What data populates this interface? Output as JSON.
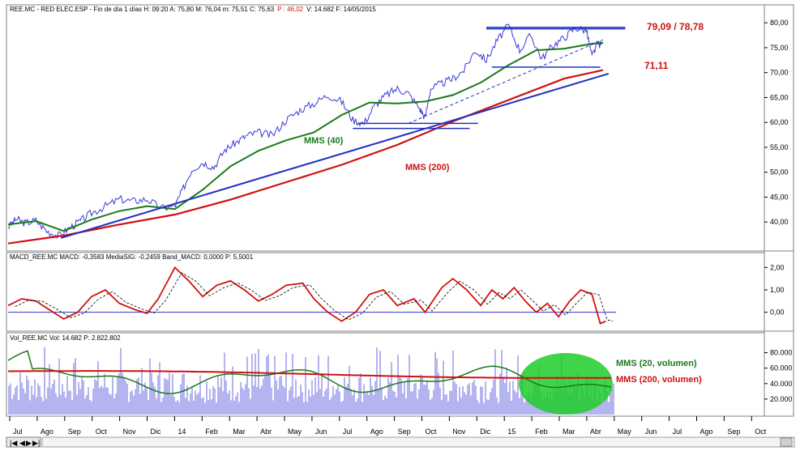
{
  "header": {
    "price": "REE.MC - RED ELEC.ESP - Fin de día 1 días  H: 09:20  A: 75,80  M: 76,04  m: 75,51  C: 75,63",
    "price_p": "P : 46,02",
    "price_tail": "V: 14.682  F: 14/05/2015",
    "macd": "MACD_REE.MC  MACD: -0,3583  MediaSIG: -0,2459  Band_MACD: 0,0000  P: 5,5001",
    "vol": "Vol_REE.MC  Vol: 14.682  P: 2.822.802"
  },
  "annotations": {
    "resistance": "79,09 / 78,78",
    "support": "71,11",
    "mms40": "MMS (40)",
    "mms200": "MMS (200)",
    "vol20": "MMS (20, volumen)",
    "vol200": "MMS (200, volumen)"
  },
  "chart_data": [
    {
      "type": "line",
      "panel": "price",
      "yticks": [
        "80,00",
        "75,00",
        "70,00",
        "65,00",
        "60,00",
        "55,00",
        "50,00",
        "45,00",
        "40,00"
      ],
      "ylim": [
        35,
        81
      ],
      "series": [
        {
          "name": "MMS (40)",
          "color": "#1a7a1a",
          "points": [
            [
              0,
              39.5
            ],
            [
              1,
              40.2
            ],
            [
              2,
              38.2
            ],
            [
              3,
              40.5
            ],
            [
              4,
              42.2
            ],
            [
              5,
              43.2
            ],
            [
              6,
              42.6
            ],
            [
              7,
              46.5
            ],
            [
              8,
              51.2
            ],
            [
              9,
              54.3
            ],
            [
              10,
              56.4
            ],
            [
              11,
              58.0
            ],
            [
              12,
              61.5
            ],
            [
              13,
              64.0
            ],
            [
              14,
              63.8
            ],
            [
              15,
              64.2
            ],
            [
              16,
              65.5
            ],
            [
              17,
              68.0
            ],
            [
              18,
              71.5
            ],
            [
              19,
              74.5
            ],
            [
              20,
              74.8
            ],
            [
              21,
              75.8
            ],
            [
              21.4,
              76.0
            ]
          ]
        },
        {
          "name": "MMS (200)",
          "color": "#d01010",
          "points": [
            [
              0,
              35.7
            ],
            [
              2,
              37.3
            ],
            [
              4,
              39.5
            ],
            [
              6,
              41.5
            ],
            [
              8,
              44.5
            ],
            [
              10,
              48.0
            ],
            [
              12,
              51.5
            ],
            [
              14,
              55.5
            ],
            [
              16,
              60.2
            ],
            [
              18,
              64.5
            ],
            [
              20,
              68.8
            ],
            [
              21.4,
              70.5
            ]
          ]
        }
      ],
      "price_points": [
        [
          0,
          39.0
        ],
        [
          0.3,
          40.6
        ],
        [
          0.6,
          39.8
        ],
        [
          1,
          40.3
        ],
        [
          1.4,
          38.2
        ],
        [
          1.8,
          37.2
        ],
        [
          2.2,
          38.8
        ],
        [
          2.6,
          40.2
        ],
        [
          3,
          41.8
        ],
        [
          3.5,
          43.2
        ],
        [
          4,
          44.6
        ],
        [
          4.5,
          44.2
        ],
        [
          5,
          44.6
        ],
        [
          5.5,
          42.8
        ],
        [
          6,
          43.2
        ],
        [
          6.2,
          45.5
        ],
        [
          6.6,
          50.5
        ],
        [
          7,
          52.0
        ],
        [
          7.4,
          51.0
        ],
        [
          7.8,
          54.5
        ],
        [
          8.2,
          56.0
        ],
        [
          8.6,
          57.4
        ],
        [
          9,
          58.0
        ],
        [
          9.5,
          57.4
        ],
        [
          10,
          60.5
        ],
        [
          10.5,
          62.5
        ],
        [
          11,
          63.8
        ],
        [
          11.5,
          65.5
        ],
        [
          12,
          64.2
        ],
        [
          12.4,
          60.5
        ],
        [
          12.8,
          59.8
        ],
        [
          13.2,
          63.5
        ],
        [
          13.6,
          65.5
        ],
        [
          14,
          66.8
        ],
        [
          14.4,
          65.8
        ],
        [
          14.8,
          62.8
        ],
        [
          15,
          61.0
        ],
        [
          15.2,
          66.8
        ],
        [
          15.6,
          67.8
        ],
        [
          16,
          68.8
        ],
        [
          16.4,
          70.5
        ],
        [
          16.8,
          74.5
        ],
        [
          17.2,
          72.5
        ],
        [
          17.6,
          76.5
        ],
        [
          18,
          79.5
        ],
        [
          18.4,
          74.5
        ],
        [
          18.8,
          77.5
        ],
        [
          19.2,
          72.8
        ],
        [
          19.6,
          75.5
        ],
        [
          20,
          77.0
        ],
        [
          20.4,
          79.0
        ],
        [
          20.8,
          78.5
        ],
        [
          21,
          73.2
        ],
        [
          21.2,
          75.8
        ],
        [
          21.4,
          75.6
        ]
      ],
      "trendline": [
        [
          1.9,
          36.8
        ],
        [
          21.6,
          69.8
        ]
      ],
      "support_lines": [
        {
          "y": 79.09,
          "x": [
            17.2,
            22.2
          ]
        },
        {
          "y": 78.78,
          "x": [
            17.2,
            22.2
          ]
        },
        {
          "y": 71.11,
          "x": [
            17.4,
            21.3
          ]
        },
        {
          "y": 59.8,
          "x": [
            12.6,
            16.9
          ]
        },
        {
          "y": 58.8,
          "x": [
            12.4,
            16.6
          ]
        }
      ],
      "dashed_trend": [
        [
          14.4,
          59.8
        ],
        [
          21.4,
          76.6
        ]
      ]
    },
    {
      "type": "line",
      "panel": "macd",
      "yticks": [
        "2,00",
        "1,00",
        "0,00"
      ],
      "ylim": [
        -0.7,
        2.3
      ],
      "series": [
        {
          "name": "MACD",
          "color": "#d01010",
          "points": [
            [
              0,
              0.3
            ],
            [
              0.5,
              0.6
            ],
            [
              1,
              0.5
            ],
            [
              1.5,
              0.1
            ],
            [
              2,
              -0.3
            ],
            [
              2.5,
              0.0
            ],
            [
              3,
              0.7
            ],
            [
              3.5,
              1.0
            ],
            [
              4,
              0.4
            ],
            [
              4.6,
              0.1
            ],
            [
              5,
              -0.05
            ],
            [
              5.4,
              0.6
            ],
            [
              6,
              2.0
            ],
            [
              6.5,
              1.4
            ],
            [
              7,
              0.7
            ],
            [
              7.5,
              1.2
            ],
            [
              8,
              1.4
            ],
            [
              8.5,
              1.0
            ],
            [
              9,
              0.5
            ],
            [
              9.5,
              0.8
            ],
            [
              10,
              1.2
            ],
            [
              10.6,
              1.3
            ],
            [
              11,
              0.6
            ],
            [
              11.5,
              0.0
            ],
            [
              12,
              -0.4
            ],
            [
              12.5,
              0.0
            ],
            [
              13,
              0.8
            ],
            [
              13.5,
              1.0
            ],
            [
              14,
              0.3
            ],
            [
              14.6,
              0.6
            ],
            [
              15,
              0.0
            ],
            [
              15.6,
              1.1
            ],
            [
              16,
              1.5
            ],
            [
              16.5,
              1.0
            ],
            [
              17,
              0.3
            ],
            [
              17.4,
              1.0
            ],
            [
              17.8,
              0.6
            ],
            [
              18.2,
              1.1
            ],
            [
              18.6,
              0.5
            ],
            [
              19,
              0.0
            ],
            [
              19.4,
              0.4
            ],
            [
              19.8,
              -0.2
            ],
            [
              20.2,
              0.5
            ],
            [
              20.6,
              1.0
            ],
            [
              21,
              0.8
            ],
            [
              21.3,
              -0.5
            ],
            [
              21.5,
              -0.4
            ]
          ]
        }
      ]
    },
    {
      "type": "bar",
      "panel": "volume",
      "yticks": [
        "80.000",
        "60.000",
        "40.000",
        "20.000"
      ],
      "ylim": [
        0,
        90000
      ],
      "series": [
        {
          "name": "MMS (20, volumen)",
          "color": "#1a7a1a"
        },
        {
          "name": "MMS (200, volumen)",
          "color": "#d01010"
        }
      ]
    }
  ],
  "xaxis": {
    "labels": [
      "Jul",
      "Ago",
      "Sep",
      "Oct",
      "Nov",
      "Dic",
      "14",
      "Feb",
      "Mar",
      "Abr",
      "May",
      "Jun",
      "Jul",
      "Ago",
      "Sep",
      "Oct",
      "Nov",
      "Dic",
      "15",
      "Feb",
      "Mar",
      "Abr",
      "May",
      "Jun",
      "Jul",
      "Ago",
      "Sep",
      "Oct"
    ]
  }
}
